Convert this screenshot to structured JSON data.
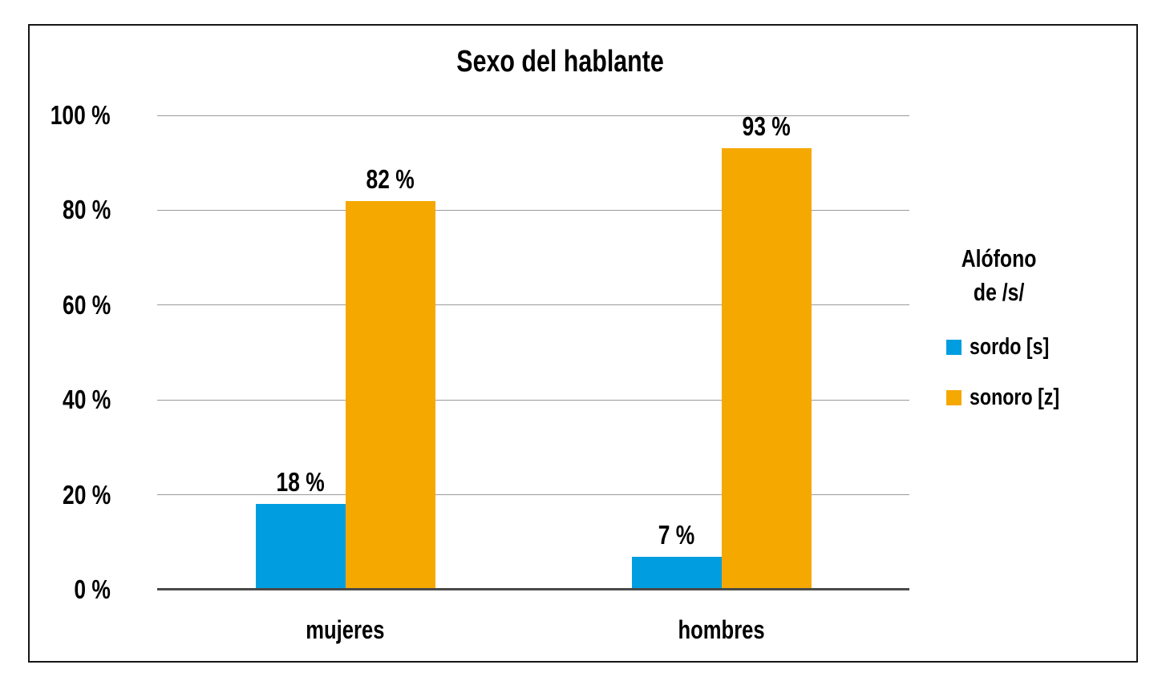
{
  "chart_data": {
    "type": "bar",
    "title": "Sexo del hablante",
    "categories": [
      "mujeres",
      "hombres"
    ],
    "series": [
      {
        "name": "sordo [s]",
        "color": "#009EE0",
        "values": [
          18,
          7
        ]
      },
      {
        "name": "sonoro [z]",
        "color": "#F5A800",
        "values": [
          82,
          93
        ]
      }
    ],
    "value_labels": [
      [
        "18 %",
        "7 %"
      ],
      [
        "82 %",
        "93 %"
      ]
    ],
    "xlabel": "",
    "ylabel": "",
    "ylim": [
      0,
      100
    ],
    "yticks": [
      0,
      20,
      40,
      60,
      80,
      100
    ],
    "ytick_labels": [
      "0 %",
      "20 %",
      "40 %",
      "60 %",
      "80 %",
      "100 %"
    ],
    "grid": true,
    "legend": {
      "position": "right",
      "title_lines": [
        "Alófono",
        "de /s/"
      ],
      "entries": [
        {
          "key": "sordo-s",
          "label": "sordo [s]",
          "color": "#009EE0"
        },
        {
          "key": "sonoro-z",
          "label": "sonoro [z]",
          "color": "#F5A800"
        }
      ]
    },
    "colors": {
      "gridline": "#9A9A9A",
      "axis_line": "#4A4A4A",
      "frame_border": "#151515",
      "text": "#000000",
      "background": "#FFFFFF"
    }
  }
}
